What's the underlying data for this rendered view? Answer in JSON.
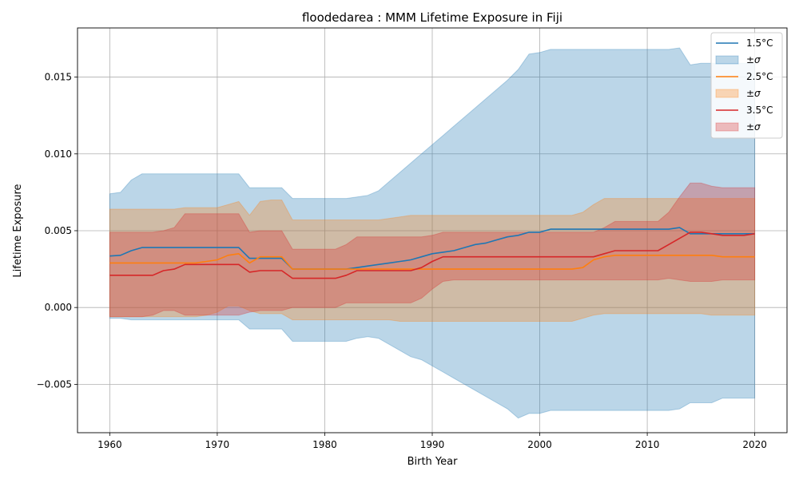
{
  "chart_data": {
    "type": "line",
    "title": "floodedarea : MMM Lifetime Exposure in Fiji",
    "xlabel": "Birth Year",
    "ylabel": "Lifetime Exposure",
    "xlim": [
      1957,
      2023
    ],
    "ylim": [
      -0.00815,
      0.0182
    ],
    "xticks": [
      1960,
      1970,
      1980,
      1990,
      2000,
      2010,
      2020
    ],
    "xtick_labels": [
      "1960",
      "1970",
      "1980",
      "1990",
      "2000",
      "2010",
      "2020"
    ],
    "yticks": [
      -0.005,
      0.0,
      0.005,
      0.01,
      0.015
    ],
    "ytick_labels": [
      "−0.005",
      "0.000",
      "0.005",
      "0.010",
      "0.015"
    ],
    "grid": true,
    "legend_position": "top-right",
    "x": [
      1960,
      1961,
      1962,
      1963,
      1964,
      1965,
      1966,
      1967,
      1968,
      1969,
      1970,
      1971,
      1972,
      1973,
      1974,
      1975,
      1976,
      1977,
      1978,
      1979,
      1980,
      1981,
      1982,
      1983,
      1984,
      1985,
      1986,
      1987,
      1988,
      1989,
      1990,
      1991,
      1992,
      1993,
      1994,
      1995,
      1996,
      1997,
      1998,
      1999,
      2000,
      2001,
      2002,
      2003,
      2004,
      2005,
      2006,
      2007,
      2008,
      2009,
      2010,
      2011,
      2012,
      2013,
      2014,
      2015,
      2016,
      2017,
      2018,
      2019,
      2020
    ],
    "series": [
      {
        "name": "1.5°C",
        "band_name": "±σ",
        "color": "#1f77b4",
        "mean": [
          0.00335,
          0.0034,
          0.0037,
          0.0039,
          0.0039,
          0.0039,
          0.0039,
          0.0039,
          0.0039,
          0.0039,
          0.0039,
          0.0039,
          0.0039,
          0.0032,
          0.0032,
          0.0032,
          0.0032,
          0.0025,
          0.0025,
          0.0025,
          0.0025,
          0.0025,
          0.0025,
          0.0026,
          0.0027,
          0.0028,
          0.0029,
          0.003,
          0.0031,
          0.0033,
          0.0035,
          0.0036,
          0.0037,
          0.0039,
          0.0041,
          0.0042,
          0.0044,
          0.0046,
          0.0047,
          0.0049,
          0.0049,
          0.0051,
          0.0051,
          0.0051,
          0.0051,
          0.0051,
          0.0051,
          0.0051,
          0.0051,
          0.0051,
          0.0051,
          0.0051,
          0.0051,
          0.0052,
          0.0048,
          0.0048,
          0.0048,
          0.0048,
          0.0048,
          0.0048,
          0.0048
        ],
        "upper": [
          0.0074,
          0.0075,
          0.0083,
          0.0087,
          0.0087,
          0.0087,
          0.0087,
          0.0087,
          0.0087,
          0.0087,
          0.0087,
          0.0087,
          0.0087,
          0.0078,
          0.0078,
          0.0078,
          0.0078,
          0.0071,
          0.0071,
          0.0071,
          0.0071,
          0.0071,
          0.0071,
          0.0072,
          0.0073,
          0.0076,
          0.0082,
          0.0088,
          0.0094,
          0.01,
          0.0106,
          0.0112,
          0.0118,
          0.0124,
          0.013,
          0.0136,
          0.0142,
          0.0148,
          0.0155,
          0.0165,
          0.0166,
          0.0168,
          0.0168,
          0.0168,
          0.0168,
          0.0168,
          0.0168,
          0.0168,
          0.0168,
          0.0168,
          0.0168,
          0.0168,
          0.0168,
          0.0169,
          0.0158,
          0.0159,
          0.0159,
          0.0159,
          0.0159,
          0.0159,
          0.0159
        ],
        "lower": [
          -0.0007,
          -0.0007,
          -0.0008,
          -0.0008,
          -0.0008,
          -0.0008,
          -0.0008,
          -0.0008,
          -0.0008,
          -0.0008,
          -0.0008,
          -0.0008,
          -0.0008,
          -0.0014,
          -0.0014,
          -0.0014,
          -0.0014,
          -0.0022,
          -0.0022,
          -0.0022,
          -0.0022,
          -0.0022,
          -0.0022,
          -0.002,
          -0.0019,
          -0.002,
          -0.0024,
          -0.0028,
          -0.0032,
          -0.0034,
          -0.0038,
          -0.0042,
          -0.0046,
          -0.005,
          -0.0054,
          -0.0058,
          -0.0062,
          -0.0066,
          -0.0072,
          -0.0069,
          -0.0069,
          -0.0067,
          -0.0067,
          -0.0067,
          -0.0067,
          -0.0067,
          -0.0067,
          -0.0067,
          -0.0067,
          -0.0067,
          -0.0067,
          -0.0067,
          -0.0067,
          -0.0066,
          -0.0062,
          -0.0062,
          -0.0062,
          -0.0059,
          -0.0059,
          -0.0059,
          -0.0059
        ]
      },
      {
        "name": "2.5°C",
        "band_name": "±σ",
        "color": "#ff7f0e",
        "mean": [
          0.0029,
          0.0029,
          0.0029,
          0.0029,
          0.0029,
          0.0029,
          0.0029,
          0.0029,
          0.0029,
          0.003,
          0.0031,
          0.0034,
          0.0035,
          0.0029,
          0.0033,
          0.0033,
          0.0033,
          0.0025,
          0.0025,
          0.0025,
          0.0025,
          0.0025,
          0.0025,
          0.0025,
          0.0025,
          0.0025,
          0.0025,
          0.0025,
          0.0025,
          0.0025,
          0.0025,
          0.0025,
          0.0025,
          0.0025,
          0.0025,
          0.0025,
          0.0025,
          0.0025,
          0.0025,
          0.0025,
          0.0025,
          0.0025,
          0.0025,
          0.0025,
          0.0026,
          0.0031,
          0.0033,
          0.0034,
          0.0034,
          0.0034,
          0.0034,
          0.0034,
          0.0034,
          0.0034,
          0.0034,
          0.0034,
          0.0034,
          0.0033,
          0.0033,
          0.0033,
          0.0033
        ],
        "upper": [
          0.0064,
          0.0064,
          0.0064,
          0.0064,
          0.0064,
          0.0064,
          0.0064,
          0.0065,
          0.0065,
          0.0065,
          0.0065,
          0.0067,
          0.0069,
          0.006,
          0.0069,
          0.007,
          0.007,
          0.0057,
          0.0057,
          0.0057,
          0.0057,
          0.0057,
          0.0057,
          0.0057,
          0.0057,
          0.0057,
          0.0058,
          0.0059,
          0.006,
          0.006,
          0.006,
          0.006,
          0.006,
          0.006,
          0.006,
          0.006,
          0.006,
          0.006,
          0.006,
          0.006,
          0.006,
          0.006,
          0.006,
          0.006,
          0.0062,
          0.0067,
          0.0071,
          0.0071,
          0.0071,
          0.0071,
          0.0071,
          0.0071,
          0.0071,
          0.0071,
          0.0071,
          0.0071,
          0.0071,
          0.0071,
          0.0071,
          0.0071,
          0.0071
        ],
        "lower": [
          -0.0006,
          -0.0006,
          -0.0006,
          -0.0006,
          -0.0006,
          -0.0006,
          -0.0006,
          -0.0006,
          -0.0006,
          -0.0005,
          -0.0003,
          0.0001,
          0.0001,
          -0.0002,
          -0.0004,
          -0.0004,
          -0.0004,
          -0.0008,
          -0.0008,
          -0.0008,
          -0.0008,
          -0.0008,
          -0.0008,
          -0.0008,
          -0.0008,
          -0.0008,
          -0.0008,
          -0.0009,
          -0.0009,
          -0.0009,
          -0.0009,
          -0.0009,
          -0.0009,
          -0.0009,
          -0.0009,
          -0.0009,
          -0.0009,
          -0.0009,
          -0.0009,
          -0.0009,
          -0.0009,
          -0.0009,
          -0.0009,
          -0.0009,
          -0.0007,
          -0.0005,
          -0.0004,
          -0.0004,
          -0.0004,
          -0.0004,
          -0.0004,
          -0.0004,
          -0.0004,
          -0.0004,
          -0.0004,
          -0.0004,
          -0.0005,
          -0.0005,
          -0.0005,
          -0.0005,
          -0.0005
        ]
      },
      {
        "name": "3.5°C",
        "band_name": "±σ",
        "color": "#d62728",
        "mean": [
          0.0021,
          0.0021,
          0.0021,
          0.0021,
          0.0021,
          0.0024,
          0.0025,
          0.0028,
          0.0028,
          0.0028,
          0.0028,
          0.0028,
          0.0028,
          0.0023,
          0.0024,
          0.0024,
          0.0024,
          0.0019,
          0.0019,
          0.0019,
          0.0019,
          0.0019,
          0.0021,
          0.0024,
          0.0024,
          0.0024,
          0.0024,
          0.0024,
          0.0024,
          0.0026,
          0.003,
          0.0033,
          0.0033,
          0.0033,
          0.0033,
          0.0033,
          0.0033,
          0.0033,
          0.0033,
          0.0033,
          0.0033,
          0.0033,
          0.0033,
          0.0033,
          0.0033,
          0.0033,
          0.0035,
          0.0037,
          0.0037,
          0.0037,
          0.0037,
          0.0037,
          0.0041,
          0.0045,
          0.0049,
          0.0049,
          0.0048,
          0.0047,
          0.0047,
          0.0047,
          0.0048
        ],
        "upper": [
          0.0049,
          0.0049,
          0.0049,
          0.0049,
          0.0049,
          0.005,
          0.0052,
          0.0061,
          0.0061,
          0.0061,
          0.0061,
          0.0061,
          0.0061,
          0.0049,
          0.005,
          0.005,
          0.005,
          0.0038,
          0.0038,
          0.0038,
          0.0038,
          0.0038,
          0.0041,
          0.0046,
          0.0046,
          0.0046,
          0.0046,
          0.0046,
          0.0046,
          0.0046,
          0.0047,
          0.0049,
          0.0049,
          0.0049,
          0.0049,
          0.0049,
          0.0049,
          0.0049,
          0.0049,
          0.0049,
          0.0049,
          0.0049,
          0.0049,
          0.0049,
          0.0049,
          0.0049,
          0.0052,
          0.0056,
          0.0056,
          0.0056,
          0.0056,
          0.0056,
          0.0062,
          0.0072,
          0.0081,
          0.0081,
          0.0079,
          0.0078,
          0.0078,
          0.0078,
          0.0078
        ],
        "lower": [
          -0.0006,
          -0.0006,
          -0.0006,
          -0.0006,
          -0.0005,
          -0.0002,
          -0.0002,
          -0.0005,
          -0.0005,
          -0.0005,
          -0.0005,
          -0.0005,
          -0.0005,
          -0.0003,
          -0.0002,
          -0.0002,
          -0.0002,
          0.0,
          0.0,
          0.0,
          0.0,
          0.0,
          0.0003,
          0.0003,
          0.0003,
          0.0003,
          0.0003,
          0.0003,
          0.0003,
          0.0006,
          0.0012,
          0.0017,
          0.0018,
          0.0018,
          0.0018,
          0.0018,
          0.0018,
          0.0018,
          0.0018,
          0.0018,
          0.0018,
          0.0018,
          0.0018,
          0.0018,
          0.0018,
          0.0018,
          0.0018,
          0.0018,
          0.0018,
          0.0018,
          0.0018,
          0.0018,
          0.0019,
          0.0018,
          0.0017,
          0.0017,
          0.0017,
          0.0018,
          0.0018,
          0.0018,
          0.0018
        ]
      }
    ]
  }
}
